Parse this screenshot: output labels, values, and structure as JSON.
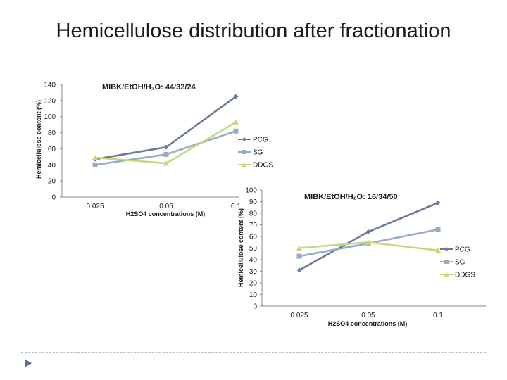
{
  "slide": {
    "title": "Hemicellulose distribution after fractionation"
  },
  "colors": {
    "PCG": "#6b7a99",
    "SG": "#98abc4",
    "DDGS": "#c8d87c",
    "axis": "#888888"
  },
  "chart_data": [
    {
      "type": "line",
      "title": "MIBK/EtOH/H₂O: 44/32/24",
      "xlabel": "H2SO4 concentrations (M)",
      "ylabel": "Hemicellulose content (%)",
      "categories": [
        "0.025",
        "0.05",
        "0.1"
      ],
      "ylim": [
        0,
        140
      ],
      "yticks": [
        "0",
        "20",
        "40",
        "60",
        "80",
        "100",
        "120",
        "140"
      ],
      "legend": "right",
      "series": [
        {
          "name": "PCG",
          "values": [
            47,
            62,
            125
          ]
        },
        {
          "name": "SG",
          "values": [
            40,
            53,
            82
          ]
        },
        {
          "name": "DDGS",
          "values": [
            49,
            42,
            93
          ]
        }
      ]
    },
    {
      "type": "line",
      "title": "MIBK/EtOH/H₂O: 16/34/50",
      "xlabel": "H2SO4 concentrations (M)",
      "ylabel": "Hemicellulose content (%)",
      "categories": [
        "0.025",
        "0.05",
        "0.1"
      ],
      "ylim": [
        0,
        100
      ],
      "yticks": [
        "0",
        "10",
        "20",
        "30",
        "40",
        "50",
        "60",
        "70",
        "80",
        "90",
        "100"
      ],
      "legend": "right",
      "series": [
        {
          "name": "PCG",
          "values": [
            31,
            64,
            89
          ]
        },
        {
          "name": "SG",
          "values": [
            43,
            54,
            66
          ]
        },
        {
          "name": "DDGS",
          "values": [
            50,
            55,
            48
          ]
        }
      ]
    }
  ]
}
